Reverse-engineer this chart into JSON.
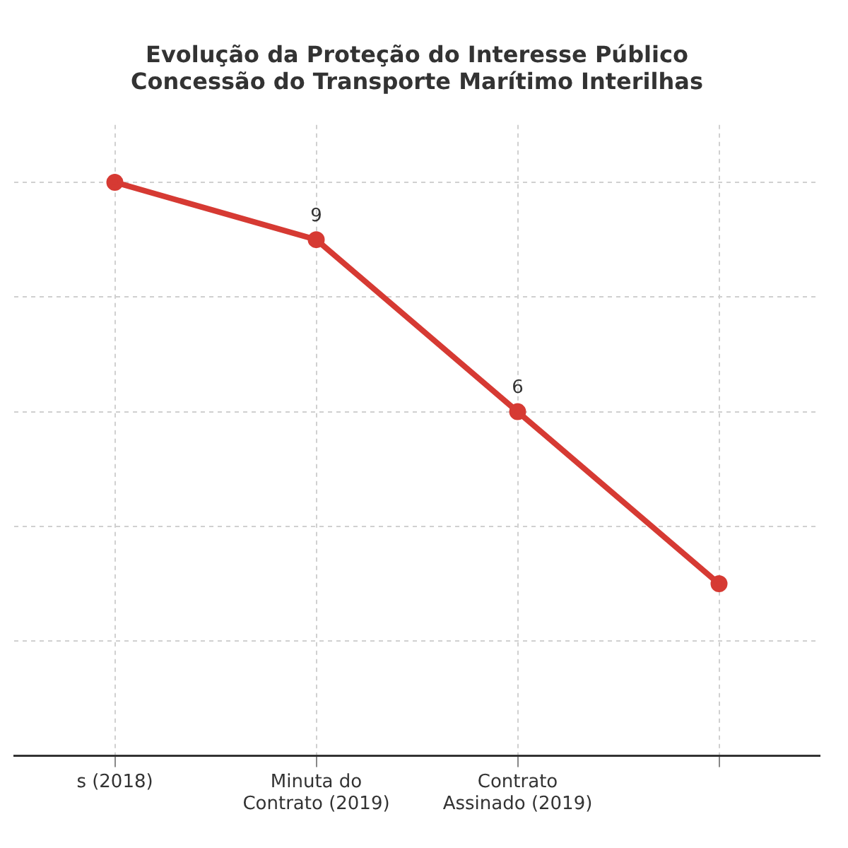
{
  "chart_data": {
    "type": "line",
    "title": "Evolução da Proteção do Interesse Público\nConcessão do Transporte Marítimo Interilhas",
    "categories": [
      "s (2018)",
      "Minuta do Contrato (2019)",
      "Contrato Assinado (2019)",
      null
    ],
    "series": [
      {
        "color": "#d63a33",
        "values": [
          10,
          9,
          6,
          3
        ],
        "value_labels": [
          null,
          "9",
          "6",
          null
        ]
      }
    ],
    "ylim": [
      0,
      11
    ],
    "yticks": [
      {
        "value": 2,
        "label": null
      },
      {
        "value": 4,
        "label": null
      },
      {
        "value": 6,
        "label": null
      },
      {
        "value": 8,
        "label": null
      },
      {
        "value": 10,
        "label": null
      }
    ],
    "grid": true,
    "tick_labels": "x",
    "marker": "circle",
    "line_style": "solid",
    "legend": false
  }
}
